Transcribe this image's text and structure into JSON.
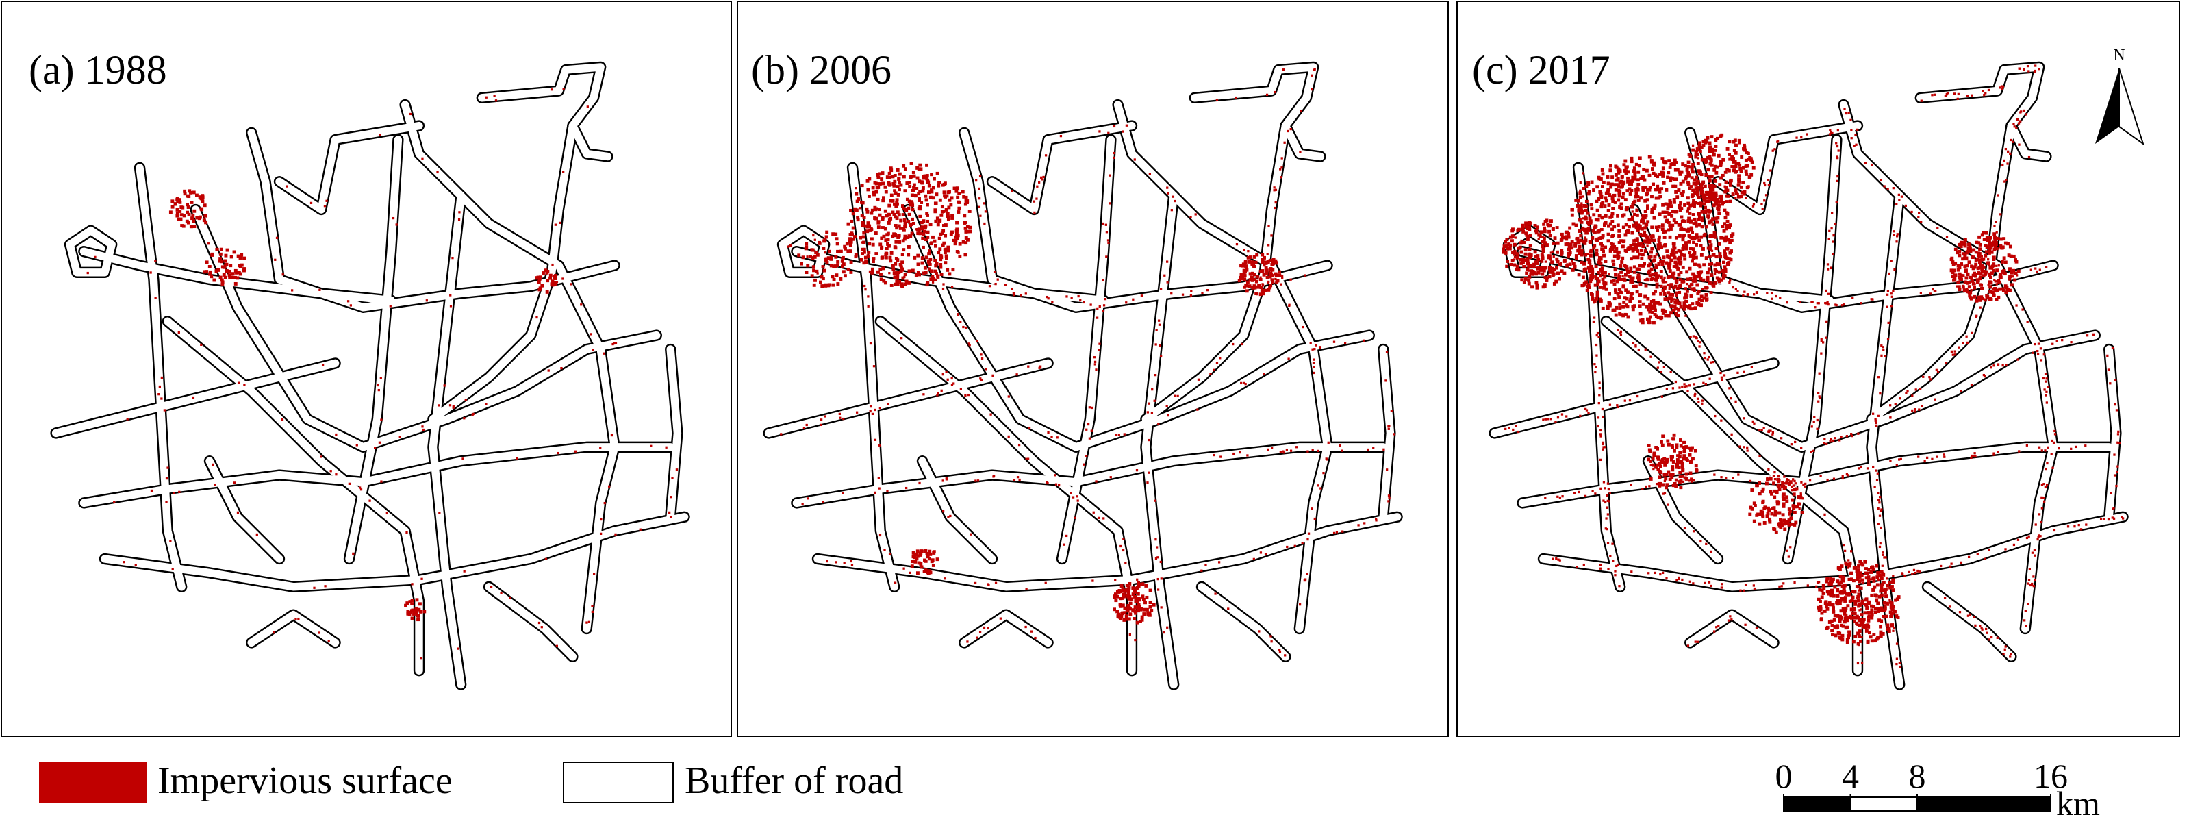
{
  "panels": [
    {
      "label": "(a) 1988"
    },
    {
      "label": "(b) 2006"
    },
    {
      "label": "(c) 2017"
    }
  ],
  "north_arrow": {
    "label": "N"
  },
  "legend": [
    {
      "label": "Impervious surface"
    },
    {
      "label": "Buffer of road"
    }
  ],
  "scale_bar": {
    "ticks": [
      0,
      4,
      8,
      16
    ],
    "unit": "km"
  }
}
